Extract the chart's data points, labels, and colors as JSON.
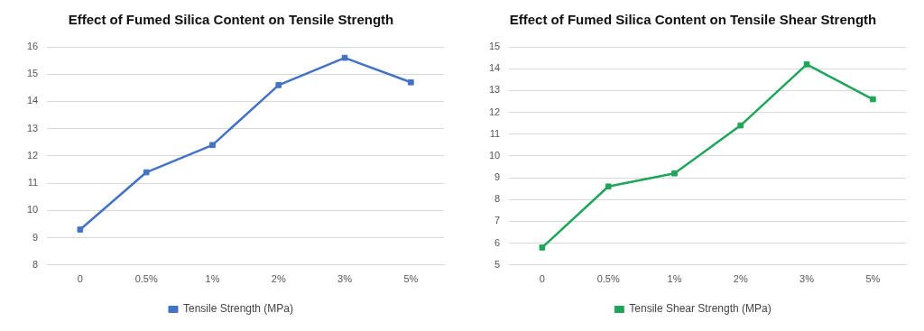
{
  "chart_data": [
    {
      "type": "line",
      "title": "Effect of Fumed Silica Content on Tensile Strength",
      "categories": [
        "0",
        "0.5%",
        "1%",
        "2%",
        "3%",
        "5%"
      ],
      "series": [
        {
          "name": "Tensile Strength (MPa)",
          "color": "#4472c4",
          "values": [
            9.3,
            11.4,
            12.4,
            14.6,
            15.6,
            14.7
          ]
        }
      ],
      "ylim": [
        8,
        16
      ],
      "yticks": [
        8,
        9,
        10,
        11,
        12,
        13,
        14,
        15,
        16
      ],
      "grid": "y",
      "legend": "bottom",
      "marker": "square",
      "line_style": "solid"
    },
    {
      "type": "line",
      "title": "Effect of Fumed Silica Content on Tensile Shear Strength",
      "categories": [
        "0",
        "0.5%",
        "1%",
        "2%",
        "3%",
        "5%"
      ],
      "series": [
        {
          "name": "Tensile Shear Strength (MPa)",
          "color": "#1fa55a",
          "values": [
            5.8,
            8.6,
            9.2,
            11.4,
            14.2,
            12.6
          ]
        }
      ],
      "ylim": [
        5,
        15
      ],
      "yticks": [
        5,
        6,
        7,
        8,
        9,
        10,
        11,
        12,
        13,
        14,
        15
      ],
      "grid": "y",
      "legend": "bottom",
      "marker": "square",
      "line_style": "solid"
    }
  ]
}
